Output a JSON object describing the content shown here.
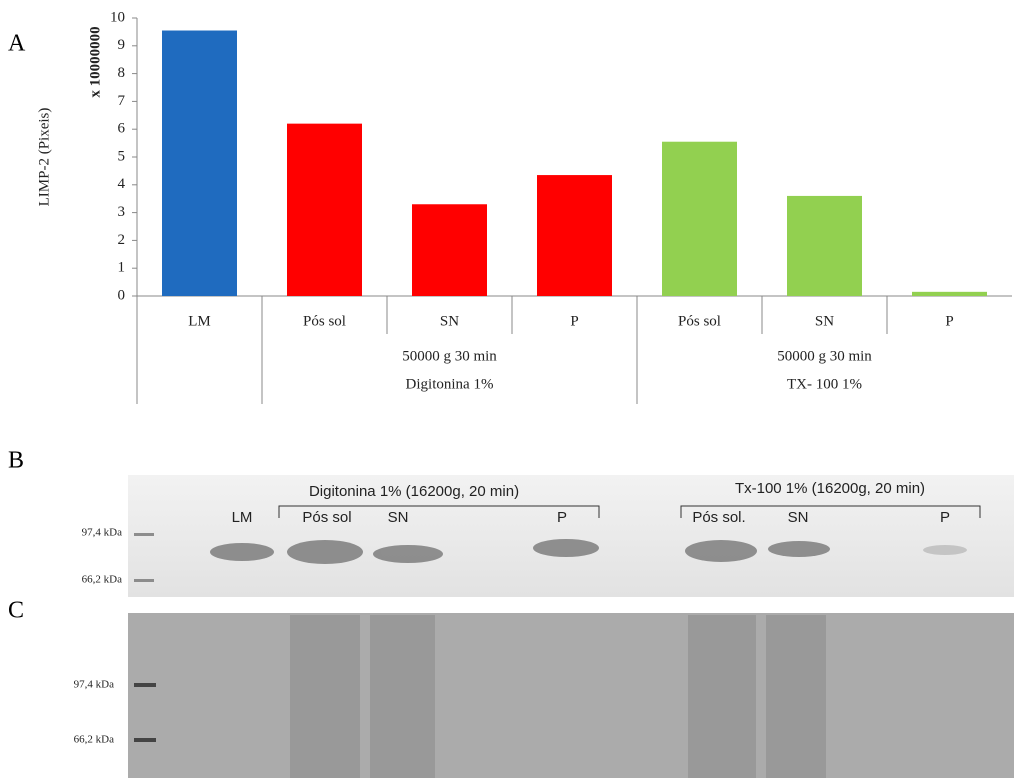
{
  "chart_data": {
    "type": "bar",
    "y_label": "LIMP-2 (Pixeis)",
    "y_multiplier": "x 10000000",
    "categories": [
      "LM",
      "Pós sol",
      "SN",
      "P",
      "Pós sol",
      "SN",
      "P"
    ],
    "values": [
      9.55,
      6.2,
      3.3,
      4.35,
      5.55,
      3.6,
      0.15
    ],
    "colors": [
      "#1f6bbf",
      "#ff0000",
      "#ff0000",
      "#ff0000",
      "#92d050",
      "#92d050",
      "#92d050"
    ],
    "groups": [
      {
        "condition": "50000 g  30 min",
        "detergent": "Digitonina 1%"
      },
      {
        "condition": "50000 g  30 min",
        "detergent": "TX- 100 1%"
      }
    ],
    "ylim": [
      0,
      10
    ],
    "yticks": [
      0,
      1,
      2,
      3,
      4,
      5,
      6,
      7,
      8,
      9,
      10
    ],
    "grid": false
  },
  "panels": {
    "a": "A",
    "b": "B",
    "c": "C"
  },
  "gel_b": {
    "markers": [
      "97,4 kDa",
      "66,2 kDa"
    ],
    "digitonin_header": "Digitonina 1% (16200g, 20 min)",
    "tx_header": "Tx-100 1% (16200g, 20 min)",
    "lanes": [
      "LM",
      "Pós sol",
      "SN",
      "P",
      "Pós sol.",
      "SN",
      "P"
    ]
  },
  "gel_c": {
    "markers": [
      "97,4 kDa",
      "66,2 kDa"
    ]
  }
}
